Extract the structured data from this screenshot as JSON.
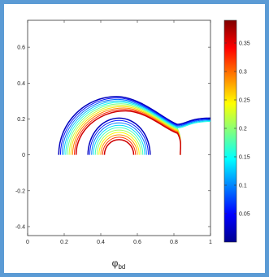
{
  "chart_data": {
    "type": "contour",
    "title": "",
    "xlabel": "φ",
    "xlabel_subscript": "bd",
    "ylabel": "",
    "xlim": [
      0,
      1
    ],
    "ylim": [
      -0.45,
      0.75
    ],
    "x_ticks": [
      0,
      0.2,
      0.4,
      0.6,
      0.8,
      1
    ],
    "x_tick_labels": [
      "0",
      "0.2",
      "0.4",
      "0.6",
      "0.8",
      "1"
    ],
    "y_ticks": [
      -0.4,
      -0.2,
      0,
      0.2,
      0.4,
      0.6
    ],
    "y_tick_labels": [
      "-0.4",
      "-0.2",
      "0",
      "0.2",
      "0.4",
      "0.6"
    ],
    "grid": false,
    "colorbar": {
      "colormap": "jet",
      "range": [
        0,
        0.39
      ],
      "ticks": [
        0.05,
        0.1,
        0.15,
        0.2,
        0.25,
        0.3,
        0.35
      ],
      "tick_labels": [
        "0.05",
        "0.1",
        "0.15",
        "0.2",
        "0.25",
        "0.3",
        "0.35"
      ]
    },
    "contour_groups": [
      {
        "name": "outer-band",
        "count": 11,
        "level_min": 0.02,
        "level_max": 0.36,
        "outer": {
          "x_left": 0.17,
          "x_right": 0.835,
          "top_y": 0.325,
          "tail_y": 0.195,
          "tail_x": 1.0
        },
        "inner": {
          "x_left": 0.265,
          "x_right": 0.835,
          "top_y": 0.245
        }
      },
      {
        "name": "inner-band",
        "count": 10,
        "level_min": 0.02,
        "level_max": 0.36,
        "outer": {
          "center_x": 0.5,
          "radius_x": 0.17,
          "radius_y": 0.205
        },
        "inner": {
          "center_x": 0.5,
          "radius_x": 0.08,
          "radius_y": 0.085
        }
      }
    ]
  }
}
